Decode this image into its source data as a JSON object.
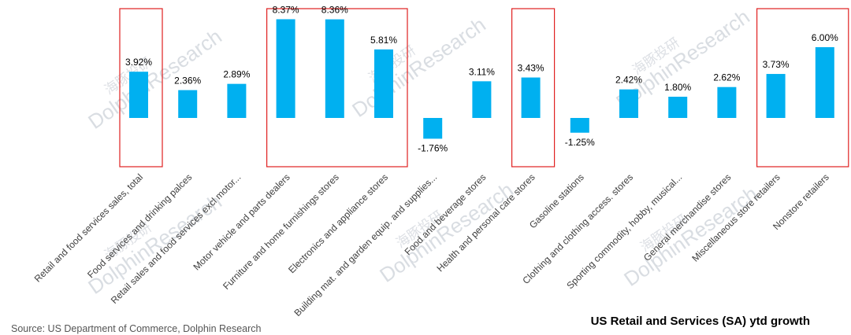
{
  "watermark": {
    "cn": "海豚投研",
    "en": "DolphinResearch"
  },
  "source": "Source: US Department of Commerce, Dolphin Research",
  "chart_data": {
    "type": "bar",
    "title": "US Retail and Services (SA) ytd growth",
    "xlabel": "",
    "ylabel": "",
    "bar_color": "#00b0f0",
    "highlight_color": "#e02020",
    "categories": [
      "Retail and food services sales, total",
      "Food services and drinking palces",
      "Retail sales and food services excl motor...",
      "Motor vehicle and parts dealers",
      "Furniture and home furnishings stores",
      "Electronics and appliance stores",
      "Building mat. and garden equip. and supplies...",
      "Food and beverage stores",
      "Health and personal care stores",
      "Gasoline stations",
      "Clothing and clothing access. stores",
      "Sporting commodity, hobby, musical...",
      "General merchandise stores",
      "Miscellaneous store retailers",
      "Nonstore retailers"
    ],
    "values": [
      3.92,
      2.36,
      2.89,
      8.37,
      8.36,
      5.81,
      -1.76,
      3.11,
      3.43,
      -1.25,
      2.42,
      1.8,
      2.62,
      3.73,
      6.0
    ],
    "value_labels": [
      "3.92%",
      "2.36%",
      "2.89%",
      "8.37%",
      "8.36%",
      "5.81%",
      "-1.76%",
      "3.11%",
      "3.43%",
      "-1.25%",
      "2.42%",
      "1.80%",
      "2.62%",
      "3.73%",
      "6.00%"
    ],
    "highlighted_groups": [
      [
        0,
        0
      ],
      [
        3,
        5
      ],
      [
        8,
        8
      ],
      [
        13,
        14
      ]
    ],
    "grid": false,
    "legend": "none"
  }
}
